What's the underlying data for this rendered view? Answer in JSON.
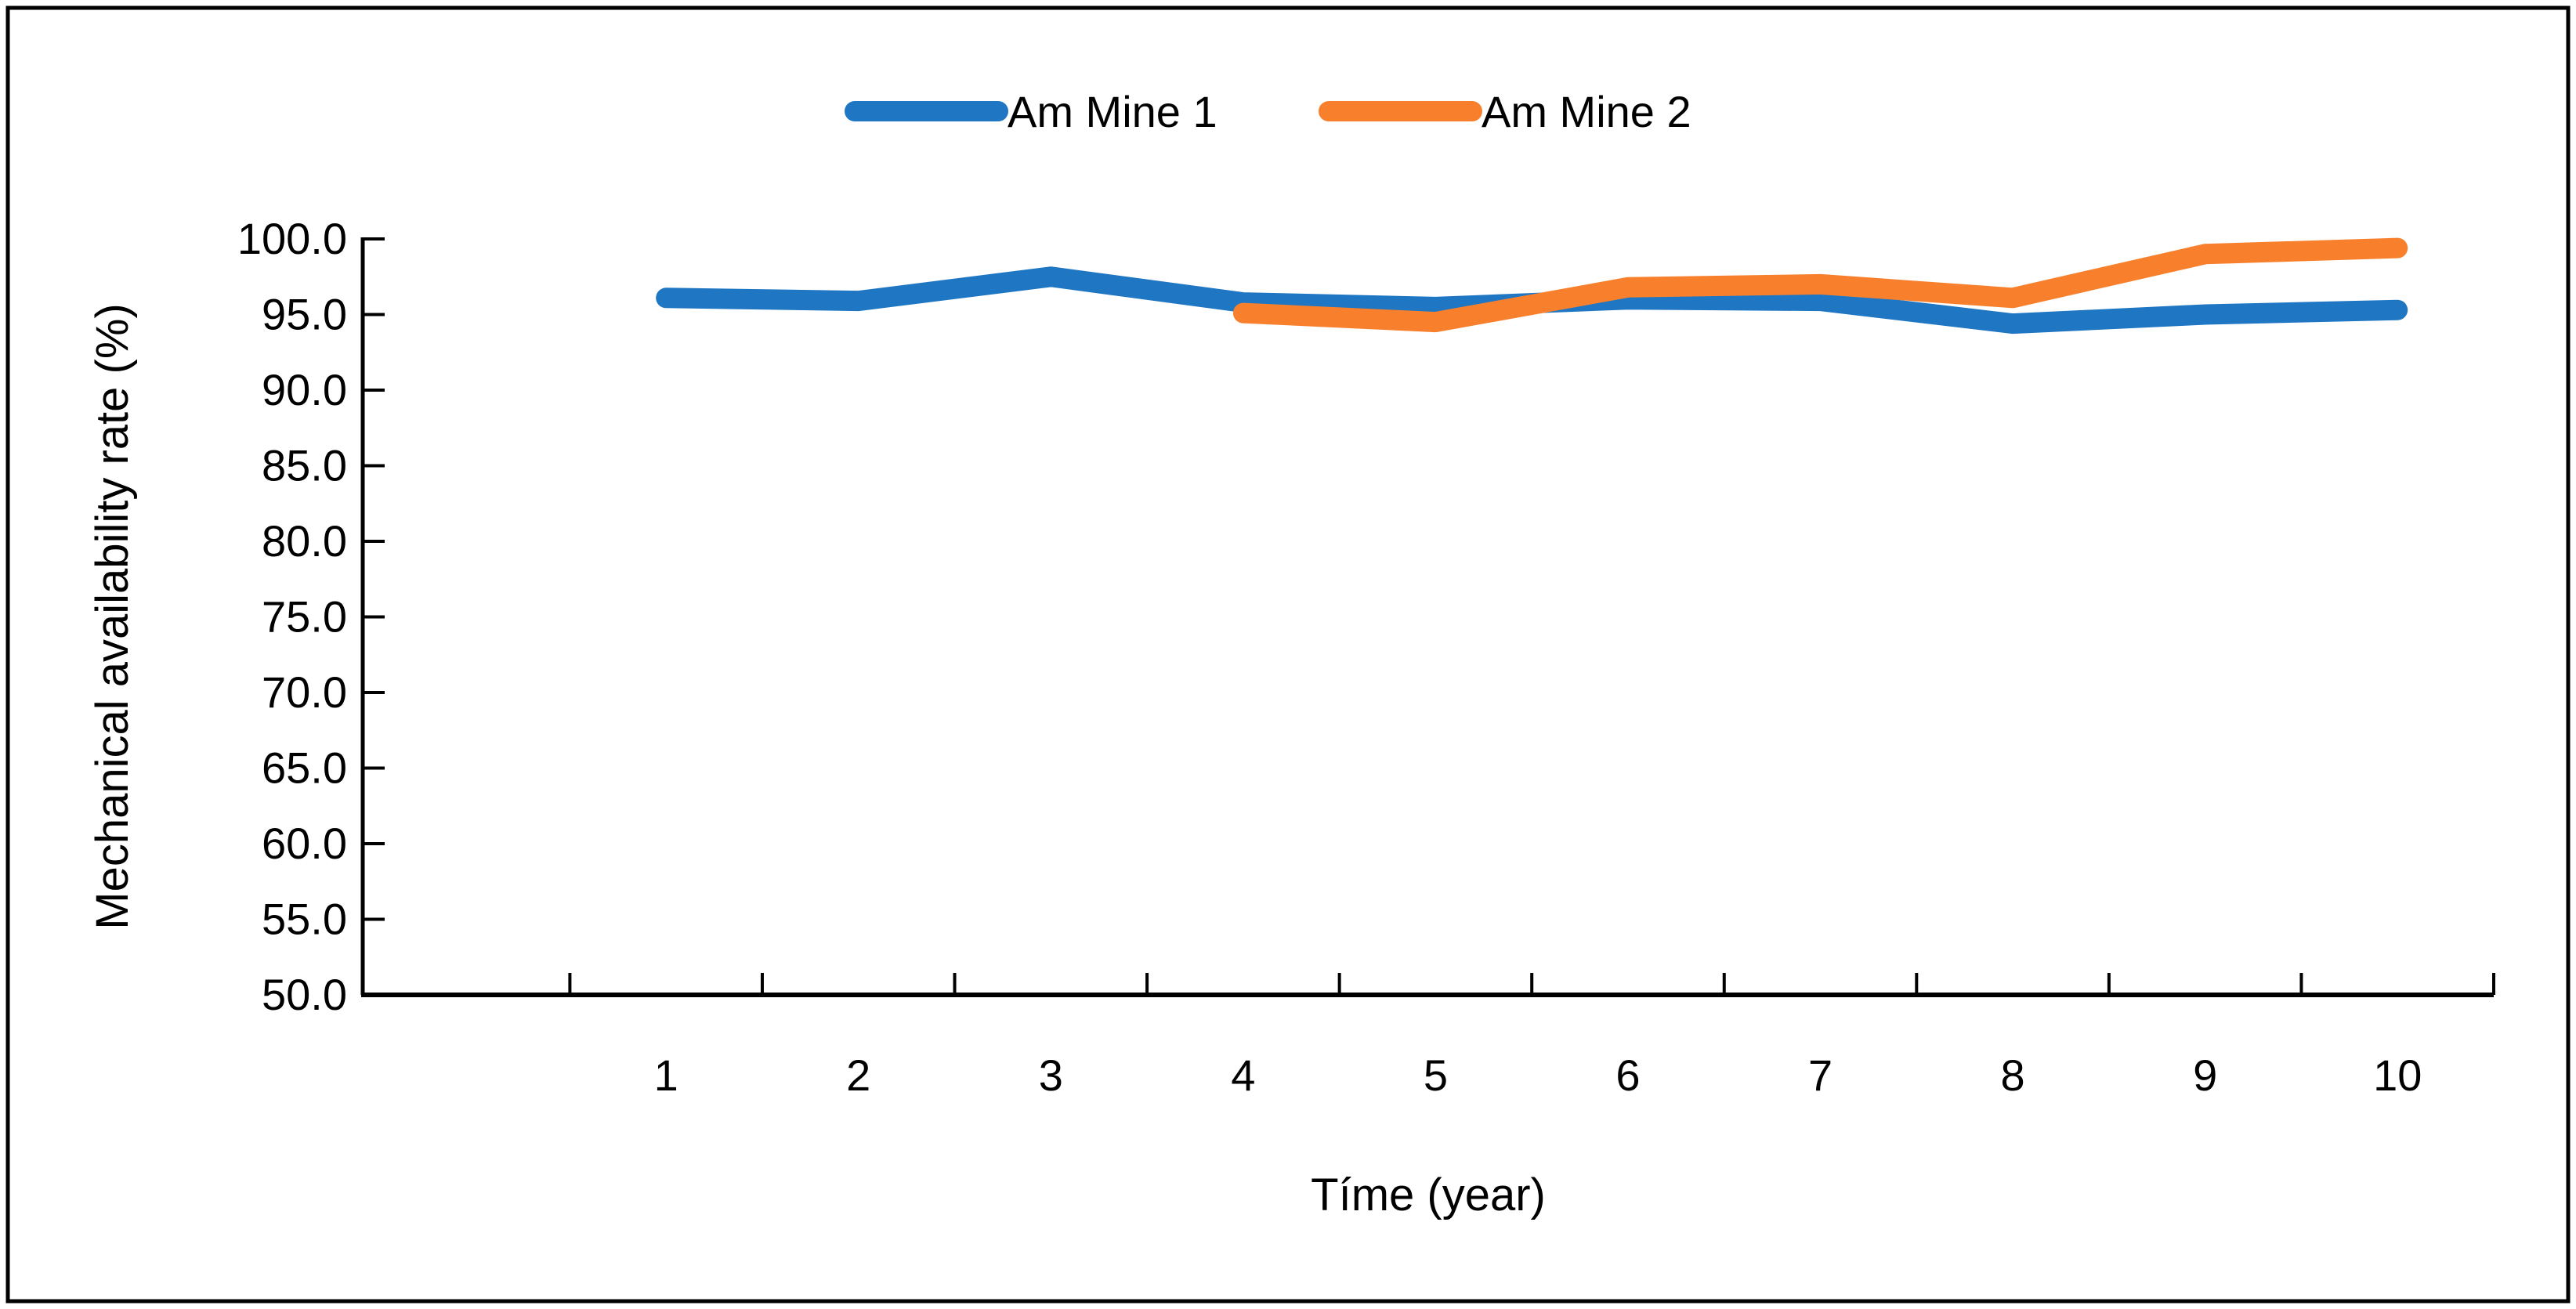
{
  "window": {
    "background_color": "#ffffff",
    "border_color": "#000000"
  },
  "chart_data": {
    "type": "line",
    "title": "",
    "xlabel": "Tíme (year)",
    "ylabel": "Mechanical availability rate (%)",
    "categories": [
      1,
      2,
      3,
      4,
      5,
      6,
      7,
      8,
      9,
      10
    ],
    "xticks": [
      "1",
      "2",
      "3",
      "4",
      "5",
      "6",
      "7",
      "8",
      "9",
      "10"
    ],
    "yticks": [
      "100.0",
      "95.0",
      "90.0",
      "85.0",
      "80.0",
      "75.0",
      "70.0",
      "65.0",
      "60.0",
      "55.0",
      "50.0"
    ],
    "ylim": [
      50,
      100
    ],
    "ytick_step": 5,
    "grid": false,
    "tick_style": "inside",
    "legend_position": "top",
    "line_style": {
      "thickness_px": 26,
      "caps": "round"
    },
    "series": [
      {
        "name": "Am Mine 1",
        "color": "#1f76c2",
        "values": [
          96.1,
          95.9,
          97.5,
          95.8,
          95.5,
          96.0,
          95.9,
          94.4,
          95.0,
          95.3
        ]
      },
      {
        "name": "Am Mine 2",
        "color": "#f8802d",
        "values": [
          null,
          null,
          null,
          95.1,
          94.5,
          96.8,
          97.0,
          96.1,
          99.0,
          99.4
        ]
      }
    ]
  },
  "axis_colors": {
    "axis_line": "#000000",
    "tick_mark": "#000000",
    "text": "#000000"
  }
}
